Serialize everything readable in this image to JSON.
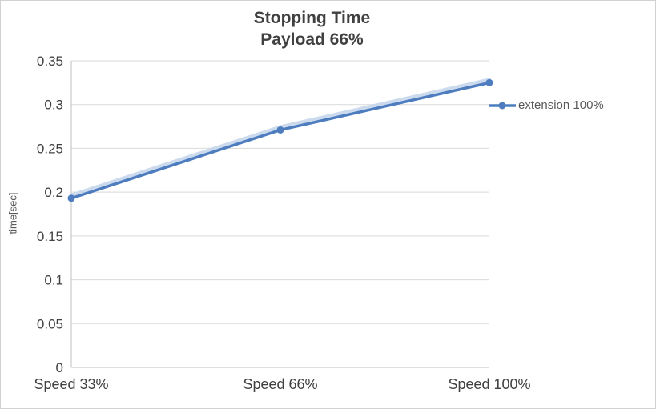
{
  "chart_data": {
    "type": "line",
    "title": "Stopping Time",
    "subtitle": "Payload 66%",
    "ylabel": "time[sec]",
    "xlabel": "",
    "categories": [
      "Speed 33%",
      "Speed 66%",
      "Speed 100%"
    ],
    "series": [
      {
        "name": "extension 100%",
        "values": [
          0.193,
          0.271,
          0.325
        ],
        "color": "#4e7dbf"
      }
    ],
    "ylim": [
      0,
      0.35
    ],
    "yticks": [
      0,
      0.05,
      0.1,
      0.15,
      0.2,
      0.25,
      0.3,
      0.35
    ],
    "ytick_labels": [
      "0",
      "0.05",
      "0.1",
      "0.15",
      "0.2",
      "0.25",
      "0.3",
      "0.35"
    ],
    "grid": true,
    "legend_position": "right",
    "marker": "circle"
  },
  "colors": {
    "series_line": "#4e7dbf",
    "series_halo": "#c7d6ec",
    "gridline": "#d9d9d9",
    "axis_line": "#bfbfbf",
    "tick_text": "#404040",
    "title_text": "#404040",
    "legend_text": "#595959"
  }
}
